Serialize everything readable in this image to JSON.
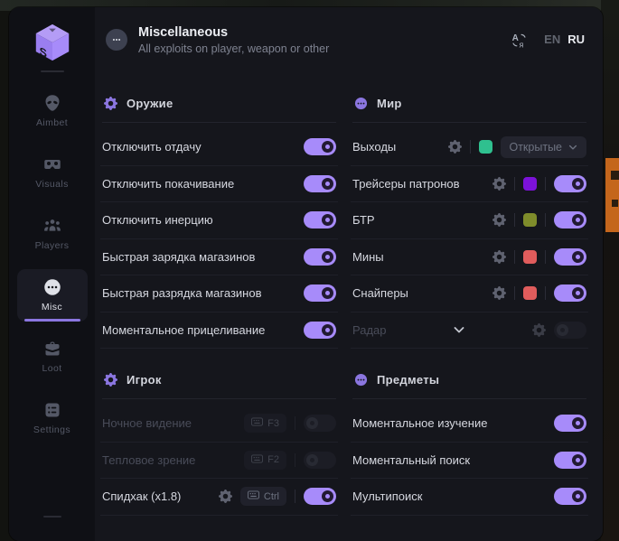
{
  "header": {
    "title": "Miscellaneous",
    "subtitle": "All exploits on player, weapon or other",
    "language": {
      "icon": "translate-icon",
      "options": [
        {
          "label": "EN",
          "active": false
        },
        {
          "label": "RU",
          "active": true
        }
      ]
    }
  },
  "sidebar": {
    "logo_icon": "cube-logo",
    "items": [
      {
        "id": "aimbet",
        "label": "Aimbet",
        "icon": "alien-icon",
        "active": false
      },
      {
        "id": "visuals",
        "label": "Visuals",
        "icon": "vr-goggles-icon",
        "active": false
      },
      {
        "id": "players",
        "label": "Players",
        "icon": "players-icon",
        "active": false
      },
      {
        "id": "misc",
        "label": "Misc",
        "icon": "ellipsis-icon",
        "active": true
      },
      {
        "id": "loot",
        "label": "Loot",
        "icon": "briefcase-icon",
        "active": false
      },
      {
        "id": "settings",
        "label": "Settings",
        "icon": "list-icon",
        "active": false
      }
    ]
  },
  "colors": {
    "accent": "#a78bfa",
    "active_tab_bar": "#8b76e0"
  },
  "sections": [
    {
      "id": "weapon",
      "title": "Оружие",
      "icon": "gear-icon",
      "column": "left",
      "rows": [
        {
          "label": "Отключить отдачу",
          "toggle": "on"
        },
        {
          "label": "Отключить покачивание",
          "toggle": "on"
        },
        {
          "label": "Отключить инерцию",
          "toggle": "on"
        },
        {
          "label": "Быстрая зарядка магазинов",
          "toggle": "on"
        },
        {
          "label": "Быстрая разрядка магазинов",
          "toggle": "on"
        },
        {
          "label": "Моментальное прицеливание",
          "toggle": "on"
        }
      ]
    },
    {
      "id": "world",
      "title": "Мир",
      "icon": "ellipsis-icon",
      "column": "right",
      "rows": [
        {
          "label": "Выходы",
          "gear": true,
          "swatch": "#2fc08f",
          "dropdown": "Открытые"
        },
        {
          "label": "Трейсеры патронов",
          "gear": true,
          "swatch": "#7c12d9",
          "toggle": "on"
        },
        {
          "label": "БТР",
          "gear": true,
          "swatch": "#7f8c2b",
          "toggle": "on"
        },
        {
          "label": "Мины",
          "gear": true,
          "swatch": "#e05c5c",
          "toggle": "on"
        },
        {
          "label": "Снайперы",
          "gear": true,
          "swatch": "#e05c5c",
          "toggle": "on"
        },
        {
          "label": "Радар",
          "disabled": true,
          "expander": true,
          "gear": true,
          "toggle": "off"
        }
      ]
    },
    {
      "id": "player",
      "title": "Игрок",
      "icon": "gear-icon",
      "column": "left",
      "rows": [
        {
          "label": "Ночное видение",
          "disabled": true,
          "hotkey": "F3",
          "toggle": "off"
        },
        {
          "label": "Тепловое зрение",
          "disabled": true,
          "hotkey": "F2",
          "toggle": "off"
        },
        {
          "label": "Спидхак (x1.8)",
          "gear": true,
          "hotkey": "Ctrl",
          "toggle": "on"
        }
      ]
    },
    {
      "id": "items",
      "title": "Предметы",
      "icon": "ellipsis-icon",
      "column": "right",
      "rows": [
        {
          "label": "Моментальное изучение",
          "toggle": "on"
        },
        {
          "label": "Моментальный поиск",
          "toggle": "on"
        },
        {
          "label": "Мультипоиск",
          "toggle": "on"
        }
      ]
    }
  ]
}
